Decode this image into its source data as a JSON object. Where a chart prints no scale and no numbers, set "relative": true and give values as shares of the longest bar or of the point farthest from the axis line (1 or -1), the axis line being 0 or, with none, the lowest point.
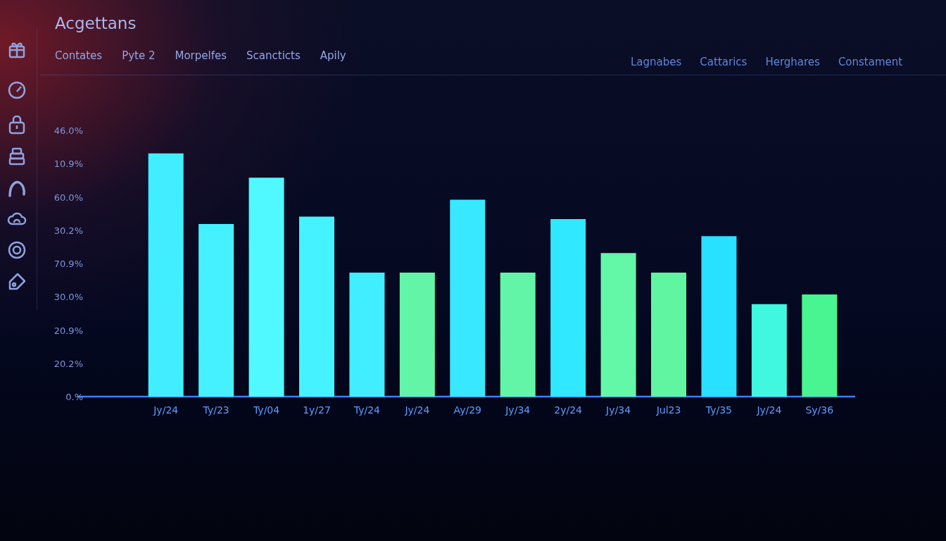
{
  "chart_data": {
    "type": "bar",
    "title": "Acgettans",
    "annotations": [
      "Contates",
      "Pyte 2",
      "Morpelfes",
      "Scancticts",
      "Apily",
      "Lagnabes",
      "Cattarics",
      "Herghares",
      "Constament",
      "46.0%",
      "10.9%",
      "60.0%",
      "30.2%",
      "70.9%",
      "30.0%",
      "20.9%",
      "20.2%",
      "0.%"
    ],
    "categories": [
      "Jy/24",
      "Ty/23",
      "Ty/04",
      "1y/27",
      "Ty/24",
      "Jy/24",
      "Ay/29",
      "Jy/34",
      "2y/24",
      "Jy/34",
      "Jul23",
      "Ty/35",
      "Jy/24",
      "Sy/36"
    ],
    "relative": true,
    "values": [
      1,
      0.71,
      0.9,
      0.74,
      0.51,
      0.51,
      0.81,
      0.51,
      0.73,
      0.59,
      0.51,
      0.66,
      0.38,
      0.42
    ],
    "colors": [
      "#40eeff",
      "#45f0ff",
      "#50f8ff",
      "#45f2ff",
      "#40eeff",
      "#62f5a8",
      "#38e8ff",
      "#62f5a8",
      "#30e8ff",
      "#62f8a8",
      "#60f5a0",
      "#28e0ff",
      "#40f8e0",
      "#48f590"
    ]
  }
}
